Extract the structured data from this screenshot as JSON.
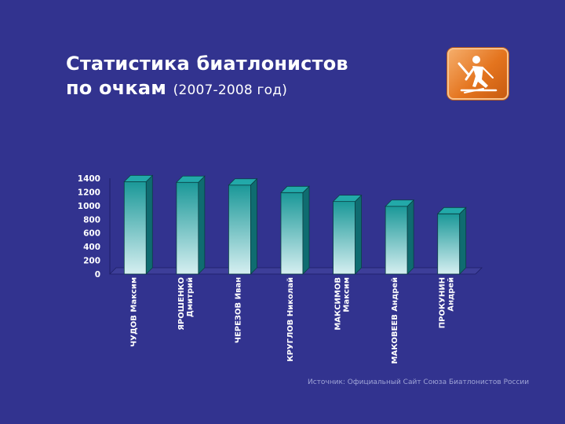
{
  "title": {
    "line1": "Статистика биатлонистов",
    "line2_bold": "по очкам",
    "line2_sub": "(2007-2008 год)"
  },
  "logo": {
    "icon": "biathlon-skier-icon"
  },
  "source": "Источник: Официальный Сайт Союза Биатлонистов России",
  "colors": {
    "background": "#32338f",
    "bar_top": "#1a9898",
    "bar_bottom": "#d6eff1",
    "bar_side": "#0f6c70",
    "axis_text": "#ffffff"
  },
  "chart_data": {
    "type": "bar",
    "categories": [
      [
        "ЧУДОВ Максим"
      ],
      [
        "ЯРОШЕНКО",
        "Дмитрий"
      ],
      [
        "ЧЕРЕЗОВ Иван"
      ],
      [
        "КРУГЛОВ Николай"
      ],
      [
        "МАКСИМОВ",
        "Максим"
      ],
      [
        "МАКОВЕЕВ Андрей"
      ],
      [
        "ПРОКУНИН",
        "Андрей"
      ]
    ],
    "values": [
      1350,
      1340,
      1300,
      1190,
      1060,
      990,
      880
    ],
    "yticks": [
      0,
      200,
      400,
      600,
      800,
      1000,
      1200,
      1400
    ],
    "ylim": [
      0,
      1400
    ],
    "grid": false,
    "legend": "none"
  }
}
